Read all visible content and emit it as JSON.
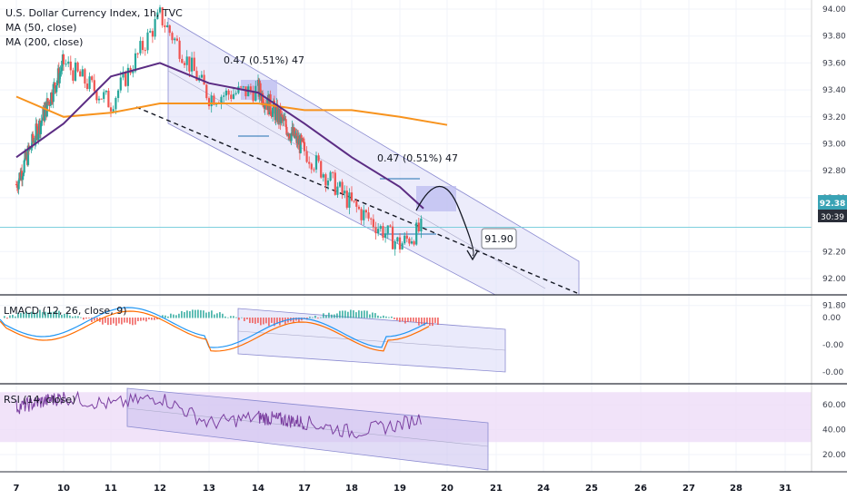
{
  "legend": {
    "title": "U.S. Dollar Currency Index, 1h, TVC",
    "ma50": "MA (50, close)",
    "ma200": "MA (200, close)",
    "macd": "LMACD (12, 26, close, 9)",
    "rsi": "RSI (14, close)"
  },
  "annotations": {
    "measure1": "0.47 (0.51%) 47",
    "measure2": "0.47 (0.51%) 47",
    "target": "91.90"
  },
  "price_badge": {
    "price": "92.38",
    "timer": "30:39"
  },
  "colors": {
    "up": "#26a69a",
    "down": "#ef5350",
    "ma50": "#5b2c83",
    "ma200": "#f7931e",
    "channel_fill": "#dcdcf8",
    "channel_edge": "#8a8ad0",
    "price_line": "#6ccad8",
    "rsi_band": "#eddcf7",
    "rsi_line": "#7b3fa0"
  },
  "chart_data": [
    {
      "type": "candlestick",
      "title": "U.S. Dollar Currency Index, 1h, TVC",
      "x_ticks": [
        "7",
        "10",
        "11",
        "12",
        "13",
        "14",
        "17",
        "18",
        "19",
        "20",
        "21",
        "24",
        "25",
        "26",
        "27",
        "28",
        "31"
      ],
      "y_ticks": [
        "94.00",
        "93.80",
        "93.60",
        "93.40",
        "93.20",
        "93.00",
        "92.80",
        "92.60",
        "92.20",
        "92.00",
        "91.80"
      ],
      "ylim": [
        91.7,
        94.05
      ],
      "last_price": 92.38,
      "target": 91.9,
      "series": [
        {
          "name": "MA (50, close)",
          "x": [
            7,
            10,
            11,
            12,
            13,
            14,
            17,
            18,
            19,
            19.5
          ],
          "values": [
            92.9,
            93.15,
            93.5,
            93.6,
            93.45,
            93.38,
            93.15,
            92.9,
            92.68,
            92.52
          ]
        },
        {
          "name": "MA (200, close)",
          "x": [
            7,
            10,
            11,
            12,
            13,
            14,
            17,
            18,
            19,
            20
          ],
          "values": [
            93.35,
            93.2,
            93.23,
            93.3,
            93.3,
            93.3,
            93.25,
            93.25,
            93.2,
            93.14
          ]
        },
        {
          "name": "price",
          "x": [
            7,
            10,
            11,
            12,
            13,
            14,
            17,
            18,
            19,
            19.5
          ],
          "values": [
            92.7,
            93.6,
            93.3,
            93.95,
            93.35,
            93.4,
            92.95,
            92.55,
            92.25,
            92.38
          ]
        }
      ]
    },
    {
      "type": "bar",
      "title": "LMACD (12, 26, close, 9)",
      "y_ticks": [
        "0.00",
        "-0.00",
        "-0.00"
      ]
    },
    {
      "type": "line",
      "title": "RSI (14, close)",
      "y_ticks": [
        "60.00",
        "40.00",
        "20.00"
      ],
      "ylim": [
        10,
        75
      ],
      "band": [
        30,
        70
      ],
      "x": [
        7,
        10,
        11,
        12,
        13,
        14,
        17,
        18,
        19,
        19.5
      ],
      "values": [
        58,
        66,
        60,
        66,
        45,
        50,
        46,
        38,
        44,
        50
      ]
    }
  ]
}
